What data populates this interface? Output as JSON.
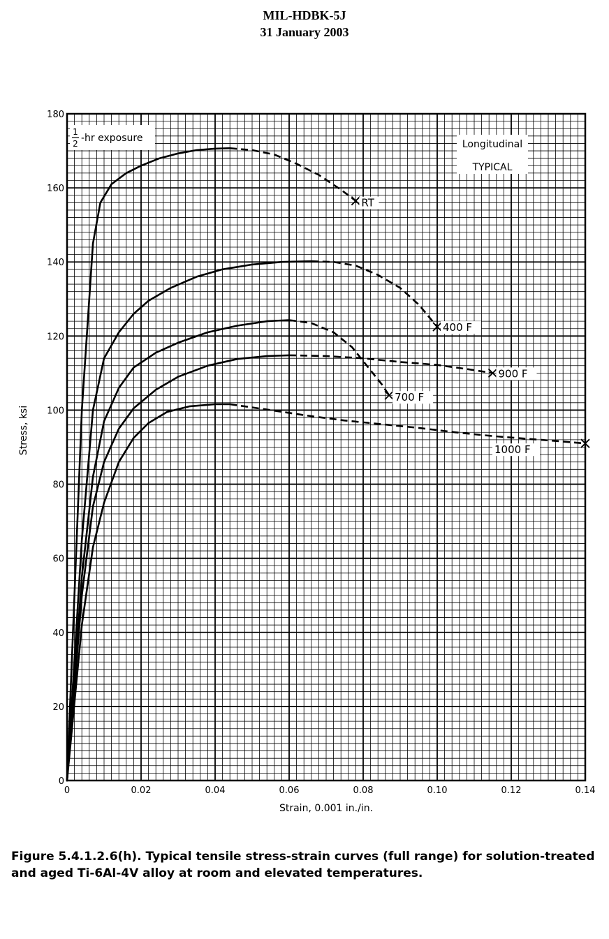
{
  "header": {
    "document_id": "MIL-HDBK-5J",
    "date": "31 January 2003"
  },
  "caption": "Figure 5.4.1.2.6(h).  Typical tensile stress-strain curves (full range) for solution-treated and aged Ti-6Al-4V alloy at room and elevated temperatures.",
  "chart_data": {
    "type": "line",
    "xlabel": "Strain, 0.001 in./in.",
    "ylabel": "Stress, ksi",
    "xlim": [
      0,
      0.14
    ],
    "ylim": [
      0,
      180
    ],
    "x_ticks": [
      "0",
      "0.02",
      "0.04",
      "0.06",
      "0.08",
      "0.10",
      "0.12",
      "0.14"
    ],
    "y_ticks": [
      "0",
      "20",
      "40",
      "60",
      "80",
      "100",
      "120",
      "140",
      "160",
      "180"
    ],
    "grid": true,
    "annotations": {
      "exposure_num": "1",
      "exposure_den": "2",
      "exposure_text": "-hr exposure",
      "direction": "Longitudinal",
      "basis": "TYPICAL"
    },
    "series": [
      {
        "name": "RT",
        "solid": [
          [
            0,
            0
          ],
          [
            0.004,
            100
          ],
          [
            0.007,
            145
          ],
          [
            0.009,
            156
          ],
          [
            0.012,
            161
          ],
          [
            0.016,
            164
          ],
          [
            0.02,
            166
          ],
          [
            0.025,
            168
          ],
          [
            0.03,
            169.3
          ],
          [
            0.035,
            170.2
          ],
          [
            0.04,
            170.6
          ],
          [
            0.044,
            170.7
          ]
        ],
        "dashed": [
          [
            0.044,
            170.7
          ],
          [
            0.05,
            170.2
          ],
          [
            0.056,
            169
          ],
          [
            0.062,
            166.5
          ],
          [
            0.068,
            163.5
          ],
          [
            0.074,
            159.5
          ],
          [
            0.078,
            156.5
          ]
        ],
        "end": [
          0.078,
          156.5
        ]
      },
      {
        "name": "400 F",
        "solid": [
          [
            0,
            0
          ],
          [
            0.004,
            65
          ],
          [
            0.007,
            100
          ],
          [
            0.01,
            114
          ],
          [
            0.014,
            121
          ],
          [
            0.018,
            126
          ],
          [
            0.022,
            129.5
          ],
          [
            0.028,
            133
          ],
          [
            0.035,
            136
          ],
          [
            0.042,
            138
          ],
          [
            0.05,
            139.3
          ],
          [
            0.058,
            140
          ],
          [
            0.066,
            140.2
          ]
        ],
        "dashed": [
          [
            0.066,
            140.2
          ],
          [
            0.072,
            140
          ],
          [
            0.078,
            139
          ],
          [
            0.084,
            136.5
          ],
          [
            0.09,
            133
          ],
          [
            0.095,
            128.5
          ],
          [
            0.1,
            122.5
          ]
        ],
        "end": [
          0.1,
          122.5
        ]
      },
      {
        "name": "700 F",
        "solid": [
          [
            0,
            0
          ],
          [
            0.004,
            55
          ],
          [
            0.007,
            82
          ],
          [
            0.01,
            97
          ],
          [
            0.014,
            106
          ],
          [
            0.018,
            111.5
          ],
          [
            0.024,
            115.5
          ],
          [
            0.03,
            118.2
          ],
          [
            0.038,
            121
          ],
          [
            0.046,
            122.8
          ],
          [
            0.054,
            124
          ],
          [
            0.06,
            124.3
          ]
        ],
        "dashed": [
          [
            0.06,
            124.3
          ],
          [
            0.066,
            123.5
          ],
          [
            0.072,
            121
          ],
          [
            0.077,
            117
          ],
          [
            0.081,
            112
          ],
          [
            0.085,
            107
          ],
          [
            0.087,
            104
          ]
        ],
        "end": [
          0.087,
          104
        ]
      },
      {
        "name": "900 F",
        "solid": [
          [
            0,
            0
          ],
          [
            0.004,
            50
          ],
          [
            0.007,
            74
          ],
          [
            0.01,
            86
          ],
          [
            0.014,
            95
          ],
          [
            0.018,
            100.5
          ],
          [
            0.024,
            105.5
          ],
          [
            0.03,
            109
          ],
          [
            0.038,
            112
          ],
          [
            0.046,
            113.8
          ],
          [
            0.054,
            114.6
          ],
          [
            0.06,
            114.8
          ]
        ],
        "dashed": [
          [
            0.06,
            114.8
          ],
          [
            0.07,
            114.6
          ],
          [
            0.08,
            114
          ],
          [
            0.09,
            113
          ],
          [
            0.1,
            112.2
          ],
          [
            0.108,
            111.1
          ],
          [
            0.115,
            110
          ]
        ],
        "end": [
          0.115,
          110
        ]
      },
      {
        "name": "1000 F",
        "solid": [
          [
            0,
            0
          ],
          [
            0.004,
            42
          ],
          [
            0.007,
            63
          ],
          [
            0.01,
            75
          ],
          [
            0.014,
            86
          ],
          [
            0.018,
            92.5
          ],
          [
            0.022,
            96.5
          ],
          [
            0.027,
            99.5
          ],
          [
            0.033,
            101
          ],
          [
            0.04,
            101.6
          ],
          [
            0.044,
            101.6
          ]
        ],
        "dashed": [
          [
            0.044,
            101.6
          ],
          [
            0.055,
            100
          ],
          [
            0.065,
            98.5
          ],
          [
            0.075,
            97.2
          ],
          [
            0.085,
            96.2
          ],
          [
            0.095,
            95.2
          ],
          [
            0.105,
            94
          ],
          [
            0.115,
            93
          ],
          [
            0.125,
            92.2
          ],
          [
            0.133,
            91.6
          ],
          [
            0.14,
            91
          ]
        ],
        "end": [
          0.14,
          91
        ]
      }
    ]
  }
}
